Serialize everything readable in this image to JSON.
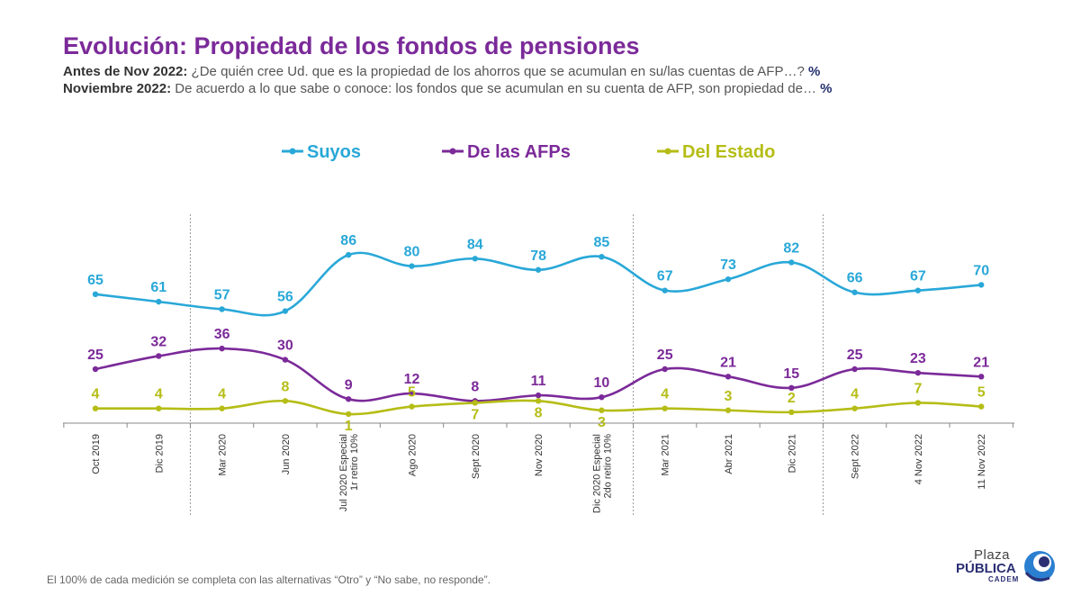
{
  "header": {
    "title": "Evolución: Propiedad de los fondos de pensiones",
    "sub1_bold": "Antes de Nov 2022:",
    "sub1_text": " ¿De quién cree Ud. que es la propiedad de los ahorros que se acumulan en su/las cuentas de AFP…? ",
    "sub1_pct": "%",
    "sub2_bold": "Noviembre 2022:",
    "sub2_text": " De acuerdo a lo que sabe o conoce: los fondos que se acumulan en su cuenta de AFP, son propiedad de… ",
    "sub2_pct": "%"
  },
  "chart_data": {
    "type": "line",
    "title": "",
    "xlabel": "",
    "ylabel": "",
    "ylim": [
      0,
      100
    ],
    "legend_position": "top",
    "grid": false,
    "categories": [
      [
        "Oct 2019"
      ],
      [
        "Dic 2019"
      ],
      [
        "Mar 2020"
      ],
      [
        "Jun 2020"
      ],
      [
        "Jul 2020 Especial",
        "1r retiro 10%"
      ],
      [
        "Ago 2020"
      ],
      [
        "Sept 2020"
      ],
      [
        "Nov 2020"
      ],
      [
        "Dic 2020 Especial",
        "2do retiro 10%"
      ],
      [
        "Mar 2021"
      ],
      [
        "Abr 2021"
      ],
      [
        "Dic 2021"
      ],
      [
        "Sept 2022"
      ],
      [
        "4 Nov 2022"
      ],
      [
        "11 Nov 2022"
      ]
    ],
    "series": [
      {
        "name": "Suyos",
        "color": "#29a8d8",
        "values": [
          65,
          61,
          57,
          56,
          86,
          80,
          84,
          78,
          85,
          67,
          73,
          82,
          66,
          67,
          70
        ]
      },
      {
        "name": "De las AFPs",
        "color": "#7b2a99",
        "values": [
          25,
          32,
          36,
          30,
          9,
          12,
          8,
          11,
          10,
          25,
          21,
          15,
          25,
          23,
          21
        ]
      },
      {
        "name": "Del Estado",
        "color": "#b5bd16",
        "values": [
          4,
          4,
          4,
          8,
          1,
          5,
          7,
          8,
          3,
          4,
          3,
          2,
          4,
          7,
          5
        ]
      }
    ],
    "separators_after_index": [
      1,
      8,
      11
    ]
  },
  "footer": {
    "note": "El 100% de cada medición se completa con las alternativas “Otro” y “No sabe, no responde”."
  },
  "logo": {
    "line1": "Plaza",
    "line2": "PÚBLICA",
    "line3": "CADEM"
  }
}
